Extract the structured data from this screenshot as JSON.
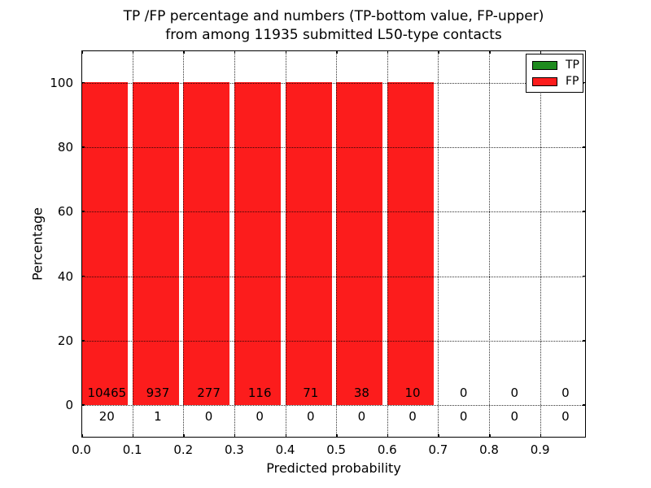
{
  "title_lines": {
    "line1": "TP /FP percentage and numbers (TP-bottom value, FP-upper)",
    "line2": "from among 11935 submitted L50-type contacts"
  },
  "chart_data": {
    "type": "bar",
    "stacked": true,
    "title": "TP /FP percentage and numbers (TP-bottom value, FP-upper) from among 11935 submitted L50-type contacts",
    "total_submitted": 11935,
    "xlabel": "Predicted probability",
    "ylabel": "Percentage",
    "xlim": [
      0.0,
      0.99
    ],
    "ylim": [
      -10,
      110
    ],
    "grid": "dotted",
    "legend_position": "upper right",
    "bin_width": 0.1,
    "categories": [
      0.0,
      0.1,
      0.2,
      0.3,
      0.4,
      0.5,
      0.6,
      0.7,
      0.8,
      0.9
    ],
    "x_tick_labels": [
      "0.0",
      "0.1",
      "0.2",
      "0.3",
      "0.4",
      "0.5",
      "0.6",
      "0.7",
      "0.8",
      "0.9"
    ],
    "y_tick_values": [
      0,
      20,
      40,
      60,
      80,
      100
    ],
    "y_tick_labels": [
      "0",
      "20",
      "40",
      "60",
      "80",
      "100"
    ],
    "series": [
      {
        "name": "TP",
        "color": "#1f8b1f",
        "counts": [
          20,
          1,
          0,
          0,
          0,
          0,
          0,
          0,
          0,
          0
        ],
        "percentages": [
          0.19,
          0.11,
          0,
          0,
          0,
          0,
          0,
          0,
          0,
          0
        ]
      },
      {
        "name": "FP",
        "color": "#fc1c1c",
        "counts": [
          10465,
          937,
          277,
          116,
          71,
          38,
          10,
          0,
          0,
          0
        ],
        "percentages": [
          99.81,
          99.89,
          100,
          100,
          100,
          100,
          100,
          0,
          0,
          0
        ]
      }
    ],
    "count_labels": {
      "fp_row": [
        "10465",
        "937",
        "277",
        "116",
        "71",
        "38",
        "10",
        "0",
        "0",
        "0"
      ],
      "tp_row": [
        "20",
        "1",
        "0",
        "0",
        "0",
        "0",
        "0",
        "0",
        "0",
        "0"
      ]
    }
  },
  "legend": {
    "items": [
      {
        "label": "TP",
        "color": "#1f8b1f"
      },
      {
        "label": "FP",
        "color": "#fc1c1c"
      }
    ]
  }
}
